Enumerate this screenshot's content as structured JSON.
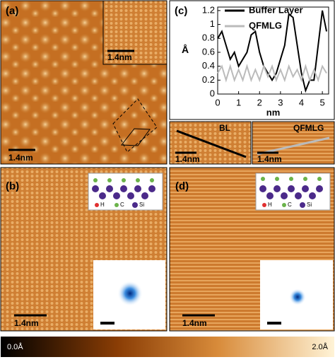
{
  "chart_data": {
    "type": "line",
    "xlabel": "nm",
    "ylabel": "Å",
    "x": [
      0,
      0.2,
      0.4,
      0.6,
      0.8,
      1.0,
      1.2,
      1.4,
      1.6,
      1.8,
      2.0,
      2.2,
      2.4,
      2.6,
      2.8,
      3.0,
      3.2,
      3.4,
      3.6,
      3.8,
      4.0,
      4.2,
      4.4,
      4.6,
      4.8,
      5.0,
      5.2
    ],
    "series": [
      {
        "name": "Buffer Layer",
        "color": "#000000",
        "values": [
          0.8,
          0.9,
          0.7,
          0.5,
          0.6,
          0.4,
          0.5,
          0.6,
          0.85,
          0.9,
          0.6,
          0.4,
          0.3,
          0.2,
          0.3,
          0.5,
          0.7,
          1.15,
          1.1,
          0.7,
          0.3,
          0.05,
          0.2,
          0.2,
          0.7,
          1.2,
          0.9
        ]
      },
      {
        "name": "QFMLG",
        "color": "#bbbbbb",
        "values": [
          0.3,
          0.4,
          0.2,
          0.4,
          0.2,
          0.35,
          0.2,
          0.4,
          0.2,
          0.35,
          0.2,
          0.4,
          0.25,
          0.4,
          0.2,
          0.35,
          0.2,
          0.4,
          0.25,
          0.35,
          0.2,
          0.4,
          0.2,
          0.35,
          0.2,
          0.4,
          0.3
        ]
      }
    ],
    "xlim": [
      0,
      5.3
    ],
    "ylim": [
      0,
      1.25
    ],
    "xticks": [
      0,
      1,
      2,
      3,
      4,
      5
    ],
    "yticks": [
      0,
      0.2,
      0.4,
      0.6,
      0.8,
      1,
      1.2
    ]
  },
  "panels": [
    {
      "label": "(a)",
      "scale_bar": "1.4nm",
      "inset_scale_bar": "1.4nm"
    },
    {
      "label": "(b)",
      "scale_bar": "1.4nm",
      "legend": [
        "H",
        "C",
        "Si"
      ]
    },
    {
      "label": "(c)",
      "insets": [
        {
          "label": "BL",
          "scale_bar": "1.4nm"
        },
        {
          "label": "QFMLG",
          "scale_bar": "1.4nm"
        }
      ]
    },
    {
      "label": "(d)",
      "scale_bar": "1.4nm",
      "legend": [
        "H",
        "C",
        "Si"
      ]
    }
  ],
  "colorbar": {
    "min_label": "0.0Å",
    "max_label": "2.0Å"
  }
}
